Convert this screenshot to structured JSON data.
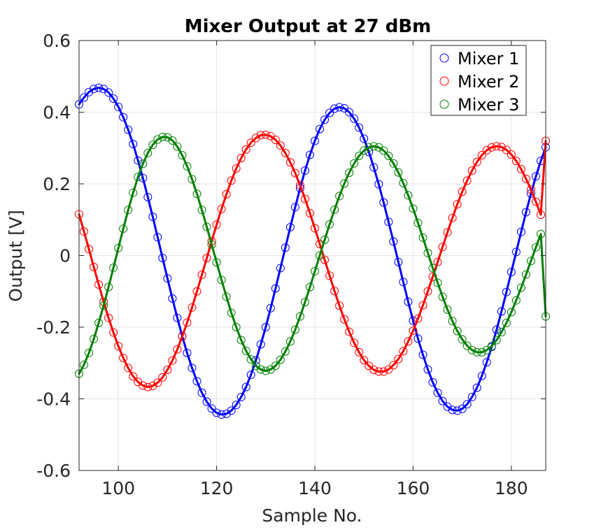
{
  "chart_data": {
    "type": "scatter",
    "title": "Mixer Output at 27 dBm",
    "xlabel": "Sample No.",
    "ylabel": "Output [V]",
    "xlim": [
      92,
      187
    ],
    "ylim": [
      -0.6,
      0.6
    ],
    "xticks": [
      100,
      120,
      140,
      160,
      180
    ],
    "xtick_labels": [
      "100",
      "120",
      "140",
      "160",
      "180"
    ],
    "yticks": [
      -0.6,
      -0.4,
      -0.2,
      0,
      0.2,
      0.4,
      0.6
    ],
    "ytick_labels": [
      "-0.6",
      "-0.4",
      "-0.2",
      "0",
      "0.2",
      "0.4",
      "0.6"
    ],
    "grid": true,
    "legend_position": "top-right",
    "marker": "open-circle",
    "fit_line": "sinusoidal fit (solid line) per series",
    "x": [
      92,
      93,
      94,
      95,
      96,
      97,
      98,
      99,
      100,
      101,
      102,
      103,
      104,
      105,
      106,
      107,
      108,
      109,
      110,
      111,
      112,
      113,
      114,
      115,
      116,
      117,
      118,
      119,
      120,
      121,
      122,
      123,
      124,
      125,
      126,
      127,
      128,
      129,
      130,
      131,
      132,
      133,
      134,
      135,
      136,
      137,
      138,
      139,
      140,
      141,
      142,
      143,
      144,
      145,
      146,
      147,
      148,
      149,
      150,
      151,
      152,
      153,
      154,
      155,
      156,
      157,
      158,
      159,
      160,
      161,
      162,
      163,
      164,
      165,
      166,
      167,
      168,
      169,
      170,
      171,
      172,
      173,
      174,
      175,
      176,
      177,
      178,
      179,
      180,
      181,
      182,
      183,
      184,
      185,
      186,
      187
    ],
    "series": [
      {
        "name": "Mixer 1",
        "color": "#0000ff",
        "values": [
          0.422,
          0.441,
          0.456,
          0.465,
          0.468,
          0.465,
          0.455,
          0.438,
          0.415,
          0.386,
          0.351,
          0.311,
          0.265,
          0.216,
          0.163,
          0.108,
          0.051,
          -0.007,
          -0.064,
          -0.12,
          -0.174,
          -0.225,
          -0.272,
          -0.314,
          -0.351,
          -0.383,
          -0.408,
          -0.427,
          -0.439,
          -0.444,
          -0.442,
          -0.433,
          -0.417,
          -0.395,
          -0.367,
          -0.333,
          -0.293,
          -0.248,
          -0.2,
          -0.147,
          -0.092,
          -0.035,
          0.022,
          0.079,
          0.135,
          0.188,
          0.237,
          0.281,
          0.32,
          0.353,
          0.379,
          0.398,
          0.41,
          0.414,
          0.411,
          0.4,
          0.382,
          0.357,
          0.326,
          0.289,
          0.246,
          0.199,
          0.148,
          0.094,
          0.039,
          -0.018,
          -0.074,
          -0.129,
          -0.182,
          -0.232,
          -0.277,
          -0.318,
          -0.354,
          -0.383,
          -0.406,
          -0.422,
          -0.431,
          -0.433,
          -0.428,
          -0.415,
          -0.395,
          -0.369,
          -0.336,
          -0.298,
          -0.255,
          -0.207,
          -0.156,
          -0.102,
          -0.046,
          0.01,
          0.066,
          0.121,
          0.173,
          0.221,
          0.264,
          0.302
        ]
      },
      {
        "name": "Mixer 2",
        "color": "#ff0000",
        "values": [
          0.115,
          0.067,
          0.018,
          -0.032,
          -0.081,
          -0.129,
          -0.174,
          -0.215,
          -0.253,
          -0.286,
          -0.314,
          -0.337,
          -0.353,
          -0.363,
          -0.367,
          -0.364,
          -0.355,
          -0.34,
          -0.319,
          -0.293,
          -0.262,
          -0.226,
          -0.187,
          -0.145,
          -0.1,
          -0.054,
          -0.007,
          0.04,
          0.086,
          0.13,
          0.171,
          0.209,
          0.243,
          0.272,
          0.296,
          0.315,
          0.328,
          0.336,
          0.337,
          0.333,
          0.323,
          0.307,
          0.286,
          0.26,
          0.23,
          0.196,
          0.158,
          0.118,
          0.076,
          0.032,
          -0.012,
          -0.056,
          -0.099,
          -0.14,
          -0.178,
          -0.213,
          -0.244,
          -0.27,
          -0.292,
          -0.308,
          -0.319,
          -0.324,
          -0.324,
          -0.318,
          -0.306,
          -0.289,
          -0.267,
          -0.24,
          -0.21,
          -0.176,
          -0.139,
          -0.1,
          -0.059,
          -0.018,
          0.024,
          0.065,
          0.105,
          0.143,
          0.178,
          0.209,
          0.237,
          0.261,
          0.28,
          0.294,
          0.302,
          0.305,
          0.303,
          0.295,
          0.282,
          0.264,
          0.241,
          0.214,
          0.184,
          0.15,
          0.114,
          0.32
        ]
      },
      {
        "name": "Mixer 3",
        "color": "#008000",
        "values": [
          -0.33,
          -0.305,
          -0.272,
          -0.233,
          -0.188,
          -0.14,
          -0.088,
          -0.034,
          0.021,
          0.075,
          0.127,
          0.175,
          0.219,
          0.256,
          0.286,
          0.309,
          0.324,
          0.331,
          0.33,
          0.321,
          0.304,
          0.28,
          0.249,
          0.213,
          0.172,
          0.127,
          0.08,
          0.031,
          -0.019,
          -0.068,
          -0.115,
          -0.16,
          -0.2,
          -0.236,
          -0.266,
          -0.29,
          -0.308,
          -0.318,
          -0.322,
          -0.318,
          -0.308,
          -0.291,
          -0.268,
          -0.24,
          -0.207,
          -0.17,
          -0.13,
          -0.088,
          -0.044,
          0.0,
          0.044,
          0.087,
          0.128,
          0.166,
          0.201,
          0.231,
          0.257,
          0.278,
          0.293,
          0.302,
          0.305,
          0.302,
          0.293,
          0.278,
          0.257,
          0.232,
          0.202,
          0.168,
          0.131,
          0.091,
          0.05,
          0.007,
          -0.035,
          -0.076,
          -0.115,
          -0.151,
          -0.183,
          -0.211,
          -0.234,
          -0.252,
          -0.264,
          -0.27,
          -0.27,
          -0.264,
          -0.253,
          -0.236,
          -0.214,
          -0.188,
          -0.158,
          -0.125,
          -0.09,
          -0.053,
          -0.015,
          0.023,
          0.06,
          -0.17
        ]
      }
    ]
  }
}
